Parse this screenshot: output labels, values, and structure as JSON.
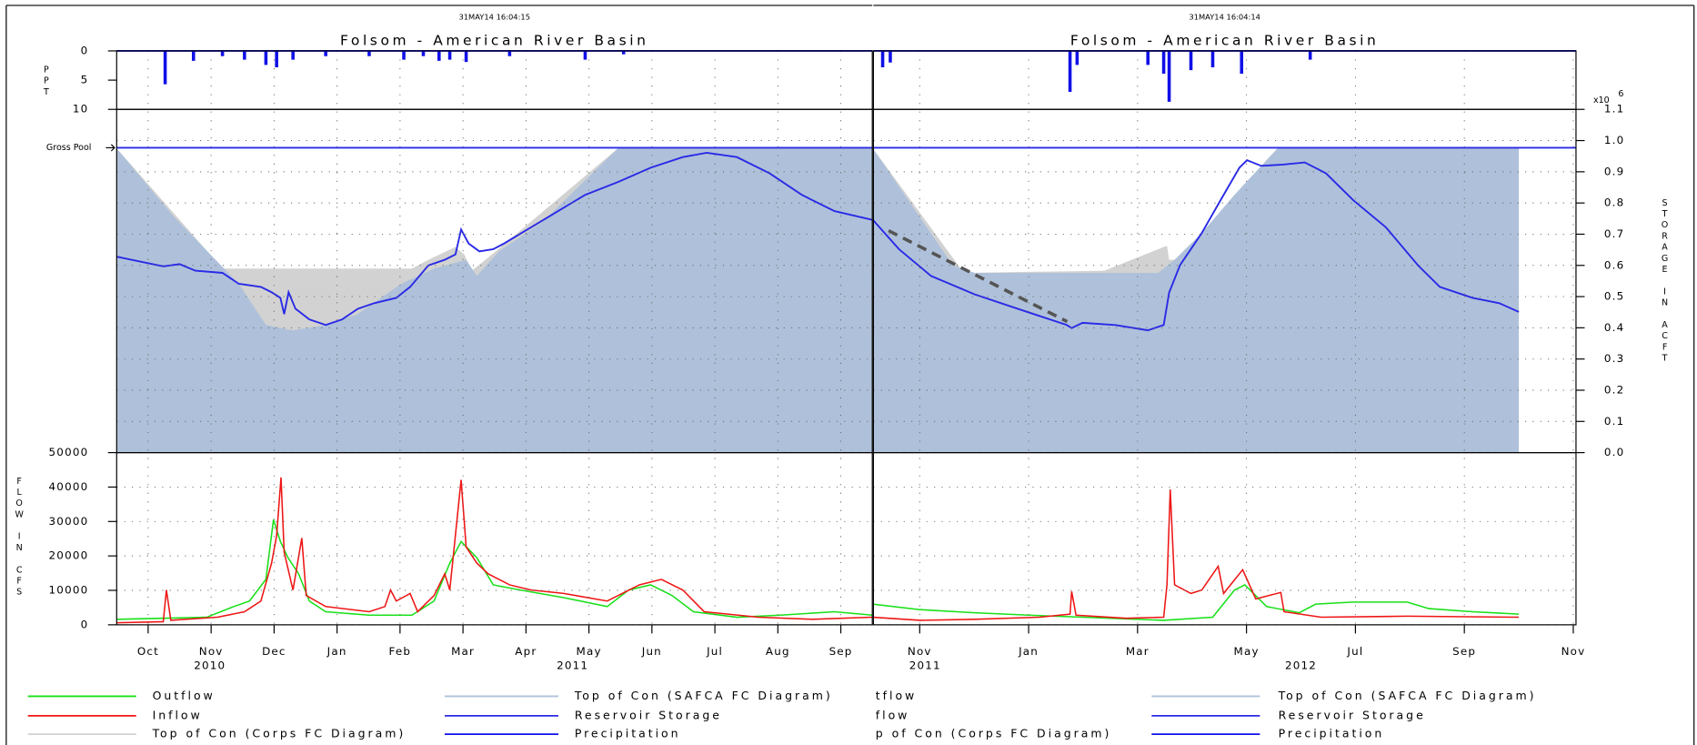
{
  "chart_data": [
    {
      "type": "hydrograph",
      "timestamp": "31MAY14  16:04:15",
      "title": "Folsom - American River Basin",
      "xlim": [
        0,
        12
      ],
      "xticks": [
        {
          "value": 0.5,
          "label": "Oct"
        },
        {
          "value": 1.5,
          "label": "Nov"
        },
        {
          "value": 2.5,
          "label": "Dec"
        },
        {
          "value": 3.5,
          "label": "Jan"
        },
        {
          "value": 4.5,
          "label": "Feb"
        },
        {
          "value": 5.5,
          "label": "Mar"
        },
        {
          "value": 6.5,
          "label": "Apr"
        },
        {
          "value": 7.5,
          "label": "May"
        },
        {
          "value": 8.5,
          "label": "Jun"
        },
        {
          "value": 9.5,
          "label": "Jul"
        },
        {
          "value": 10.5,
          "label": "Aug"
        },
        {
          "value": 11.5,
          "label": "Sep"
        }
      ],
      "year_labels": [
        {
          "value": 1.48,
          "label": "2010"
        },
        {
          "value": 7.24,
          "label": "2011"
        }
      ],
      "precipitation": {
        "axis_label": "PPT",
        "ylim": [
          0,
          10
        ],
        "yticks": [
          0,
          5,
          10
        ],
        "inverted": true,
        "tick_labels": "left",
        "series": [
          {
            "name": "Precipitation",
            "color": "#1010e8",
            "style": "bars",
            "x": [
              0.77,
              1.22,
              1.68,
              2.03,
              2.37,
              2.54,
              2.8,
              3.32,
              4.01,
              4.56,
              4.87,
              5.12,
              5.29,
              5.55,
              6.24,
              7.44,
              8.05
            ],
            "values": [
              5.7,
              1.7,
              0.9,
              1.5,
              2.4,
              2.8,
              1.5,
              0.9,
              0.9,
              1.5,
              0.9,
              1.7,
              1.5,
              1.9,
              0.9,
              1.5,
              0.6
            ]
          }
        ]
      },
      "storage": {
        "ylim": [
          0,
          1.1
        ],
        "yticks": [
          {
            "value": 0,
            "label": "0.0"
          },
          0.1,
          0.2,
          0.3,
          0.4,
          0.5,
          0.6,
          0.7,
          0.8,
          0.9,
          {
            "value": 1,
            "label": "1.0"
          },
          1.1
        ],
        "tick_labels": "none",
        "grid": true,
        "gross_pool": {
          "label": "Gross Pool",
          "value": 0.977
        },
        "series": [
          {
            "name": "Top of Con (Corps FC Diagram)",
            "color": "#d2d2d2",
            "style": "area",
            "x": [
              0,
              1.68,
              4.69,
              4.95,
              5.38,
              5.52,
              5.64,
              5.9,
              7.96,
              12
            ],
            "values": [
              0.975,
              0.59,
              0.59,
              0.618,
              0.659,
              0.635,
              0.583,
              0.625,
              0.975,
              0.975
            ]
          },
          {
            "name": "Top of Con (SAFCA FC Diagram)",
            "color": "#afc1da",
            "style": "area",
            "x": [
              0,
              0.91,
              1.94,
              2.37,
              2.8,
              3.32,
              3.83,
              4.52,
              5.04,
              5.55,
              5.72,
              6.07,
              6.76,
              7.96,
              12
            ],
            "values": [
              0.975,
              0.756,
              0.541,
              0.409,
              0.392,
              0.409,
              0.444,
              0.541,
              0.59,
              0.618,
              0.566,
              0.645,
              0.739,
              0.975,
              0.975
            ]
          },
          {
            "name": "Reservoir Storage",
            "color": "#2a2ae6",
            "style": "line",
            "x": [
              0,
              0.74,
              1.0,
              1.25,
              1.68,
              1.94,
              2.29,
              2.46,
              2.6,
              2.66,
              2.73,
              2.84,
              3.06,
              3.32,
              3.58,
              3.83,
              4.09,
              4.44,
              4.66,
              4.95,
              5.21,
              5.38,
              5.47,
              5.59,
              5.76,
              5.98,
              6.15,
              6.58,
              7.01,
              7.44,
              7.96,
              8.48,
              8.99,
              9.37,
              9.85,
              10.37,
              10.88,
              11.4,
              12
            ],
            "values": [
              0.628,
              0.597,
              0.604,
              0.583,
              0.576,
              0.541,
              0.531,
              0.514,
              0.496,
              0.444,
              0.514,
              0.461,
              0.427,
              0.409,
              0.427,
              0.461,
              0.479,
              0.496,
              0.531,
              0.6,
              0.618,
              0.635,
              0.715,
              0.67,
              0.645,
              0.652,
              0.67,
              0.722,
              0.774,
              0.826,
              0.867,
              0.913,
              0.947,
              0.961,
              0.947,
              0.895,
              0.826,
              0.774,
              0.746
            ]
          }
        ]
      },
      "flow": {
        "axis_label": "FLOW IN CFS",
        "ylim": [
          0,
          50000
        ],
        "yticks": [
          0,
          10000,
          20000,
          30000,
          40000,
          50000
        ],
        "tick_labels": "left",
        "grid": true,
        "series": [
          {
            "name": "Outflow",
            "color": "#19e019",
            "style": "line",
            "x": [
              0,
              0.74,
              1.43,
              1.86,
              2.11,
              2.37,
              2.49,
              2.6,
              2.72,
              2.89,
              3.06,
              3.32,
              4.01,
              4.69,
              5.04,
              5.29,
              5.47,
              5.72,
              5.98,
              6.41,
              7.1,
              7.79,
              8.13,
              8.48,
              8.82,
              9.16,
              9.85,
              10.54,
              11.4,
              12
            ],
            "values": [
              1600,
              1900,
              2200,
              5300,
              6900,
              13200,
              30500,
              24200,
              19500,
              14800,
              6900,
              3800,
              2800,
              2800,
              6900,
              17900,
              24200,
              19500,
              11600,
              10100,
              7900,
              5300,
              10100,
              11600,
              8500,
              3800,
              2200,
              2800,
              3800,
              2800
            ]
          },
          {
            "name": "Inflow",
            "color": "#ee1515",
            "style": "line",
            "x": [
              0,
              0.74,
              0.79,
              0.86,
              1.6,
              2.03,
              2.29,
              2.46,
              2.54,
              2.61,
              2.66,
              2.8,
              2.94,
              3.01,
              3.32,
              4.01,
              4.26,
              4.35,
              4.44,
              4.66,
              4.78,
              5.04,
              5.21,
              5.29,
              5.47,
              5.55,
              5.72,
              5.9,
              6.24,
              6.58,
              7.1,
              7.79,
              8.3,
              8.65,
              8.99,
              9.33,
              10.19,
              11.05,
              12
            ],
            "values": [
              600,
              900,
              10100,
              1300,
              2200,
              3800,
              6900,
              17900,
              25800,
              42800,
              21100,
              10100,
              25200,
              8500,
              5300,
              3800,
              5300,
              10100,
              6900,
              9100,
              3800,
              8500,
              14800,
              10100,
              42100,
              22600,
              17900,
              14800,
              11600,
              10100,
              9100,
              6900,
              11600,
              13200,
              10100,
              3800,
              2200,
              1600,
              2200
            ]
          }
        ]
      }
    },
    {
      "type": "hydrograph",
      "timestamp": "31MAY14  16:04:14",
      "title": "Folsom - American River Basin",
      "xlim": [
        0.15,
        13.05
      ],
      "xticks": [
        {
          "value": 1,
          "label": "Nov"
        },
        {
          "value": 3,
          "label": "Jan"
        },
        {
          "value": 5,
          "label": "Mar"
        },
        {
          "value": 7,
          "label": "May"
        },
        {
          "value": 9,
          "label": "Jul"
        },
        {
          "value": 11,
          "label": "Sep"
        },
        {
          "value": 13,
          "label": "Nov"
        }
      ],
      "year_labels": [
        {
          "value": 1.1,
          "label": "2011"
        },
        {
          "value": 8.0,
          "label": "2012"
        }
      ],
      "precipitation": {
        "ylim": [
          0,
          10
        ],
        "yticks": [
          0,
          5,
          10
        ],
        "inverted": true,
        "tick_labels": "none",
        "series": [
          {
            "name": "Precipitation",
            "color": "#1010e8",
            "style": "bars",
            "x": [
              0.32,
              0.46,
              3.76,
              3.89,
              5.19,
              5.48,
              5.58,
              5.98,
              6.38,
              6.91,
              8.17
            ],
            "values": [
              2.8,
              2.0,
              7.0,
              2.4,
              2.4,
              3.9,
              8.7,
              3.3,
              2.8,
              3.9,
              1.5
            ]
          }
        ]
      },
      "storage": {
        "ylim": [
          0,
          1.1
        ],
        "yticks": [
          {
            "value": 0,
            "label": "0.0"
          },
          0.1,
          0.2,
          0.3,
          0.4,
          0.5,
          0.6,
          0.7,
          0.8,
          0.9,
          {
            "value": 1,
            "label": "1.0"
          },
          1.1
        ],
        "tick_labels": "right",
        "grid": true,
        "axis_label": "STORAGE IN ACFT",
        "multiplier": "x10",
        "multiplier_exp": "6",
        "gross_pool": {
          "value": 0.977
        },
        "series": [
          {
            "name": "p of Con (Corps FC Diagram)",
            "color": "#d2d2d2",
            "style": "area",
            "x": [
              0.14,
              1.81,
              4.39,
              5.54,
              5.58,
              5.68,
              6.18,
              6.78,
              7.57,
              12.0
            ],
            "values": [
              0.975,
              0.576,
              0.583,
              0.663,
              0.618,
              0.618,
              0.704,
              0.826,
              0.975,
              0.975
            ]
          },
          {
            "name": "Top of Con (SAFCA FC Diagram)",
            "color": "#afc1da",
            "style": "area",
            "x": [
              0.14,
              1.61,
              2.01,
              5.38,
              5.68,
              6.18,
              6.78,
              7.57,
              12.0
            ],
            "values": [
              0.975,
              0.6,
              0.576,
              0.576,
              0.618,
              0.704,
              0.826,
              0.975,
              0.975
            ]
          },
          {
            "name": "Reservoir Storage",
            "color": "#2a2ae6",
            "style": "line",
            "x": [
              0.14,
              0.62,
              1.21,
              2.01,
              2.8,
              3.7,
              3.79,
              3.99,
              4.59,
              5.19,
              5.48,
              5.58,
              5.78,
              6.18,
              6.58,
              6.87,
              7.01,
              7.27,
              7.67,
              8.07,
              8.46,
              8.96,
              9.56,
              10.15,
              10.55,
              11.15,
              11.64,
              12.0
            ],
            "values": [
              0.746,
              0.652,
              0.566,
              0.507,
              0.461,
              0.409,
              0.399,
              0.416,
              0.409,
              0.392,
              0.409,
              0.513,
              0.601,
              0.704,
              0.826,
              0.913,
              0.937,
              0.919,
              0.923,
              0.93,
              0.895,
              0.809,
              0.722,
              0.6,
              0.531,
              0.496,
              0.479,
              0.451
            ]
          }
        ]
      },
      "flow": {
        "ylim": [
          0,
          50000
        ],
        "yticks": [
          0,
          10000,
          20000,
          30000,
          40000,
          50000
        ],
        "tick_labels": "none",
        "grid": true,
        "series": [
          {
            "name": "tflow",
            "color": "#19e019",
            "style": "line",
            "x": [
              0.14,
              1.01,
              2.01,
              3.0,
              3.99,
              5.48,
              6.38,
              6.78,
              6.97,
              7.37,
              7.97,
              8.27,
              8.96,
              9.95,
              10.35,
              11.15,
              12.0
            ],
            "values": [
              6000,
              4400,
              3500,
              2800,
              2200,
              1300,
              2200,
              10100,
              11600,
              5300,
              3500,
              6000,
              6600,
              6600,
              4700,
              3800,
              3100
            ]
          },
          {
            "name": "flow",
            "color": "#ee1515",
            "style": "line",
            "x": [
              0.14,
              1.01,
              2.01,
              3.2,
              3.76,
              3.79,
              3.87,
              4.79,
              5.48,
              5.54,
              5.6,
              5.68,
              5.98,
              6.18,
              6.48,
              6.58,
              6.93,
              7.17,
              7.63,
              7.69,
              8.37,
              9.95,
              12.0
            ],
            "values": [
              2200,
              1300,
              1600,
              2200,
              3100,
              9700,
              2800,
              1900,
              2200,
              11600,
              39300,
              11600,
              9100,
              10100,
              17000,
              9100,
              16000,
              7500,
              9400,
              3800,
              2200,
              2500,
              2200
            ]
          }
        ]
      }
    }
  ]
}
